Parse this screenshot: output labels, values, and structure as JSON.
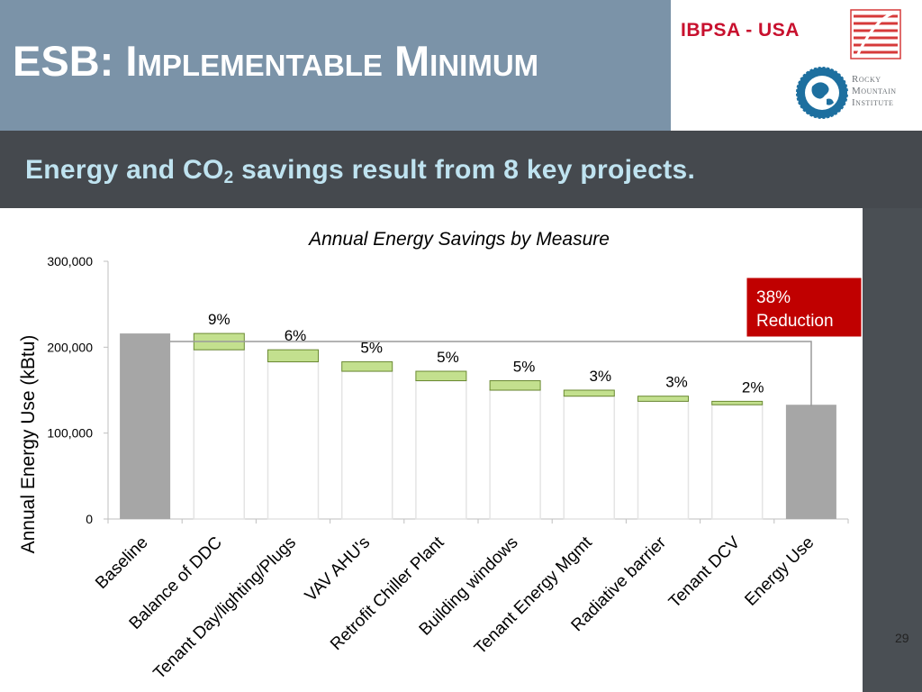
{
  "slide": {
    "title": "ESB: Implementable Minimum",
    "org_label": "IBPSA - USA",
    "subtitle_main": "Energy and CO",
    "subtitle_sub": "2",
    "subtitle_rest": " savings result from 8 key projects.",
    "page_number": "29"
  },
  "logos": {
    "rmi_word1": "Rocky",
    "rmi_word2": "Mountain",
    "rmi_word3": "Institute"
  },
  "colors": {
    "header_bg": "#7b93a8",
    "org_red": "#c8102e",
    "subtitle_text": "#bfe3f0",
    "bar_gray": "#a6a6a6",
    "saving_green": "#c3e08e",
    "saving_border": "#6b8a33",
    "callout_red": "#c00000"
  },
  "chart_data": {
    "type": "bar",
    "title": "Annual Energy Savings by Measure",
    "ylabel": "Annual Energy Use (kBtu)",
    "xlabel": "",
    "ylim": [
      0,
      300000
    ],
    "yticks": [
      0,
      100000,
      200000,
      300000
    ],
    "ytick_labels": [
      "0",
      "100,000",
      "200,000",
      "300,000"
    ],
    "grid": false,
    "categories": [
      "Baseline",
      "Balance of DDC",
      "Tenant Day/lighting/Plugs",
      "VAV AHU's",
      "Retrofit Chiller Plant",
      "Building windows",
      "Tenant Energy Mgmt",
      "Radiative barrier",
      "Tenant DCV",
      "Energy Use"
    ],
    "bars": [
      {
        "kind": "total",
        "value": 216000
      },
      {
        "kind": "step",
        "start": 216000,
        "end": 197000,
        "label": "9%"
      },
      {
        "kind": "step",
        "start": 197000,
        "end": 183000,
        "label": "6%"
      },
      {
        "kind": "step",
        "start": 183000,
        "end": 172000,
        "label": "5%"
      },
      {
        "kind": "step",
        "start": 172000,
        "end": 161000,
        "label": "5%"
      },
      {
        "kind": "step",
        "start": 161000,
        "end": 150000,
        "label": "5%"
      },
      {
        "kind": "step",
        "start": 150000,
        "end": 143000,
        "label": "3%"
      },
      {
        "kind": "step",
        "start": 143000,
        "end": 137000,
        "label": "3%"
      },
      {
        "kind": "step",
        "start": 137000,
        "end": 133000,
        "label": "2%"
      },
      {
        "kind": "total",
        "value": 133000
      }
    ],
    "callout": {
      "line1": "38%",
      "line2": "Reduction"
    }
  }
}
